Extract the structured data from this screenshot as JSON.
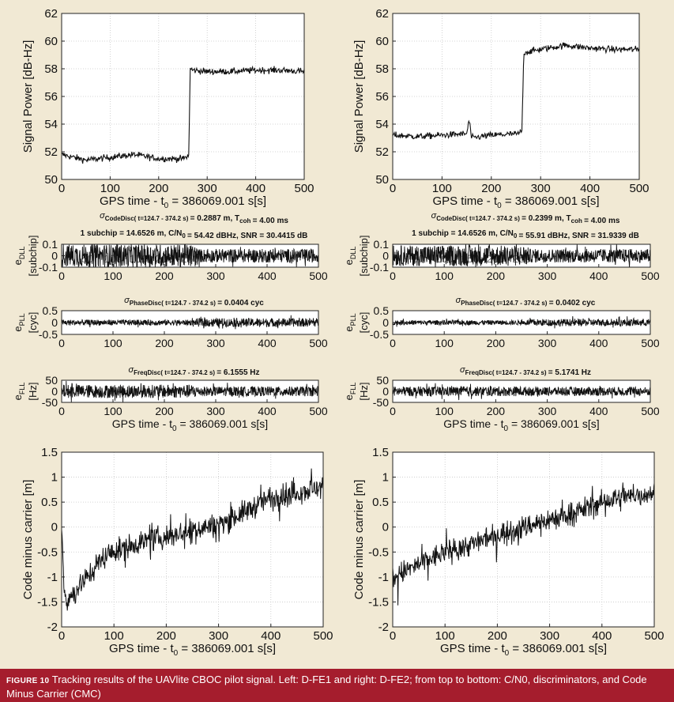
{
  "caption": {
    "label": "FIGURE 10",
    "text": "Tracking results of the UAVlite CBOC pilot signal. Left: D-FE1 and right: D-FE2; from top to bottom: C/N0, discriminators, and Code Minus Carrier (CMC)"
  },
  "chart_data": [
    {
      "id": "cn0-left",
      "type": "line",
      "xlabel": "GPS time - t0 = 386069.001 s[s]",
      "ylabel": "Signal Power [dB-Hz]",
      "xlim": [
        0,
        500
      ],
      "ylim": [
        50,
        62
      ],
      "xticks": [
        "0",
        "100",
        "200",
        "300",
        "400",
        "500"
      ],
      "yticks": [
        "50",
        "52",
        "54",
        "56",
        "58",
        "60",
        "62"
      ],
      "grid": true,
      "series": [
        {
          "x": [
            0,
            50,
            100,
            150,
            200,
            250,
            262,
            265,
            270,
            300,
            350,
            400,
            450,
            500
          ],
          "y": [
            51.8,
            51.4,
            51.6,
            51.8,
            51.5,
            51.5,
            51.7,
            58.0,
            57.9,
            57.8,
            57.8,
            57.9,
            57.9,
            57.8
          ]
        }
      ]
    },
    {
      "id": "cn0-right",
      "type": "line",
      "xlabel": "GPS time - t0 = 386069.001 s[s]",
      "ylabel": "Signal Power [dB-Hz]",
      "xlim": [
        0,
        500
      ],
      "ylim": [
        50,
        62
      ],
      "xticks": [
        "0",
        "100",
        "200",
        "300",
        "400",
        "500"
      ],
      "yticks": [
        "50",
        "52",
        "54",
        "56",
        "58",
        "60",
        "62"
      ],
      "grid": true,
      "series": [
        {
          "x": [
            0,
            50,
            100,
            150,
            155,
            160,
            200,
            255,
            262,
            266,
            270,
            300,
            350,
            400,
            450,
            500
          ],
          "y": [
            53.2,
            53.1,
            53.2,
            53.3,
            54.3,
            53.0,
            53.2,
            53.3,
            53.5,
            59.2,
            59.2,
            59.4,
            59.7,
            59.5,
            59.4,
            59.4
          ]
        }
      ]
    },
    {
      "id": "dll-left",
      "type": "line",
      "title_parts": [
        "σ",
        "CodeDisc( t=124.7 - 374.2 s)",
        "= 0.2887 m, T",
        "coh",
        "= 4.00 ms"
      ],
      "title2_parts": [
        "1 subchip = 14.6526 m, C/N",
        "0",
        "= 54.42 dBHz, SNR = 30.4415 dB"
      ],
      "ylabel": "eDLL [subchip]",
      "xlim": [
        0,
        500
      ],
      "ylim": [
        -0.1,
        0.1
      ],
      "xticks": [
        "0",
        "100",
        "200",
        "300",
        "400",
        "500"
      ],
      "yticks": [
        "-0.1",
        "0",
        "0.1"
      ],
      "ghost_ticks": [
        "50",
        "100",
        "150",
        "200",
        "250"
      ],
      "series": [
        {
          "x": [
            0,
            260,
            265,
            500
          ],
          "amplitude": [
            0.1,
            0.1,
            0.06,
            0.06
          ]
        }
      ]
    },
    {
      "id": "dll-right",
      "type": "line",
      "title_parts": [
        "σ",
        "CodeDisc( t=124.7 - 374.2 s)",
        "= 0.2399 m, T",
        "coh",
        "= 4.00 ms"
      ],
      "title2_parts": [
        "1 subchip = 14.6526 m, C/N",
        "0",
        "= 55.91 dBHz, SNR = 31.9339 dB"
      ],
      "ylabel": "eDLL [subchip]",
      "xlim": [
        0,
        500
      ],
      "ylim": [
        -0.1,
        0.1
      ],
      "xticks": [
        "0",
        "100",
        "200",
        "300",
        "400",
        "500"
      ],
      "yticks": [
        "-0.1",
        "0",
        "0.1"
      ],
      "ghost_ticks": [
        "50",
        "100",
        "150",
        "200",
        "250"
      ],
      "series": [
        {
          "x": [
            0,
            260,
            265,
            500
          ],
          "amplitude": [
            0.09,
            0.09,
            0.06,
            0.06
          ]
        }
      ]
    },
    {
      "id": "pll-left",
      "type": "line",
      "title_parts": [
        "σ",
        "PhaseDisc( t=124.7 - 374.2 s)",
        "= 0.0404 cyc"
      ],
      "ylabel": "ePLL [cyc]",
      "xlim": [
        0,
        500
      ],
      "ylim": [
        -0.5,
        0.5
      ],
      "xticks": [
        "0",
        "100",
        "200",
        "300",
        "400",
        "500"
      ],
      "yticks": [
        "-0.5",
        "0",
        "0.5"
      ],
      "series": [
        {
          "x": [
            0,
            260,
            265,
            500
          ],
          "amplitude": [
            0.12,
            0.12,
            0.18,
            0.18
          ]
        }
      ]
    },
    {
      "id": "pll-right",
      "type": "line",
      "title_parts": [
        "σ",
        "PhaseDisc( t=124.7 - 374.2 s)",
        "= 0.0402 cyc"
      ],
      "ylabel": "ePLL [cyc]",
      "xlim": [
        0,
        500
      ],
      "ylim": [
        -0.5,
        0.5
      ],
      "xticks": [
        "0",
        "100",
        "200",
        "300",
        "400",
        "500"
      ],
      "yticks": [
        "-0.5",
        "0",
        "0.5"
      ],
      "series": [
        {
          "x": [
            0,
            260,
            265,
            500
          ],
          "amplitude": [
            0.1,
            0.1,
            0.15,
            0.15
          ]
        }
      ]
    },
    {
      "id": "fll-left",
      "type": "line",
      "title_parts": [
        "σ",
        "FreqDisc( t=124.7 - 374.2 s)",
        "= 6.1555 Hz"
      ],
      "ylabel": "eFLL [Hz]",
      "xlabel": "GPS time - t0 = 386069.001 s[s]",
      "xlim": [
        0,
        500
      ],
      "ylim": [
        -50,
        50
      ],
      "xticks": [
        "0",
        "100",
        "200",
        "300",
        "400",
        "500"
      ],
      "yticks": [
        "-50",
        "0",
        "50"
      ],
      "series": [
        {
          "x": [
            0,
            260,
            265,
            500
          ],
          "amplitude": [
            30,
            30,
            22,
            22
          ]
        }
      ]
    },
    {
      "id": "fll-right",
      "type": "line",
      "title_parts": [
        "σ",
        "FreqDisc( t=124.7 - 374.2 s)",
        "= 5.1741 Hz"
      ],
      "ylabel": "eFLL [Hz]",
      "xlabel": "GPS time - t0 = 386069.001 s[s]",
      "xlim": [
        0,
        500
      ],
      "ylim": [
        -50,
        50
      ],
      "xticks": [
        "0",
        "100",
        "200",
        "300",
        "400",
        "500"
      ],
      "yticks": [
        "-50",
        "0",
        "50"
      ],
      "series": [
        {
          "x": [
            0,
            260,
            265,
            500
          ],
          "amplitude": [
            22,
            22,
            20,
            20
          ]
        }
      ]
    },
    {
      "id": "cmc-left",
      "type": "line",
      "xlabel": "GPS time - t0 = 386069.001 s[s]",
      "ylabel": "Code minus carrier [m]",
      "xlim": [
        0,
        500
      ],
      "ylim": [
        -2,
        1.5
      ],
      "xticks": [
        "0",
        "100",
        "200",
        "300",
        "400",
        "500"
      ],
      "yticks": [
        "-2",
        "-1.5",
        "-1",
        "-0.5",
        "0",
        "0.5",
        "1",
        "1.5"
      ],
      "grid": true,
      "series": [
        {
          "x": [
            0,
            5,
            10,
            40,
            80,
            100,
            150,
            200,
            250,
            300,
            350,
            400,
            450,
            500
          ],
          "y": [
            0,
            -1.2,
            -1.5,
            -1.1,
            -0.6,
            -0.5,
            -0.3,
            -0.2,
            -0.05,
            0.05,
            0.3,
            0.6,
            0.7,
            0.8
          ]
        }
      ]
    },
    {
      "id": "cmc-right",
      "type": "line",
      "xlabel": "GPS time - t0 = 386069.001 s[s]",
      "ylabel": "Code minus carrier [m]",
      "xlim": [
        0,
        500
      ],
      "ylim": [
        -2,
        1.5
      ],
      "xticks": [
        "0",
        "100",
        "200",
        "300",
        "400",
        "500"
      ],
      "yticks": [
        "-2",
        "-1.5",
        "-1",
        "-0.5",
        "0",
        "0.5",
        "1",
        "1.5"
      ],
      "grid": true,
      "series": [
        {
          "x": [
            0,
            50,
            100,
            150,
            200,
            250,
            300,
            350,
            400,
            450,
            500
          ],
          "y": [
            -1.0,
            -0.75,
            -0.5,
            -0.35,
            -0.15,
            0.0,
            0.15,
            0.3,
            0.5,
            0.6,
            0.7
          ]
        }
      ]
    }
  ]
}
